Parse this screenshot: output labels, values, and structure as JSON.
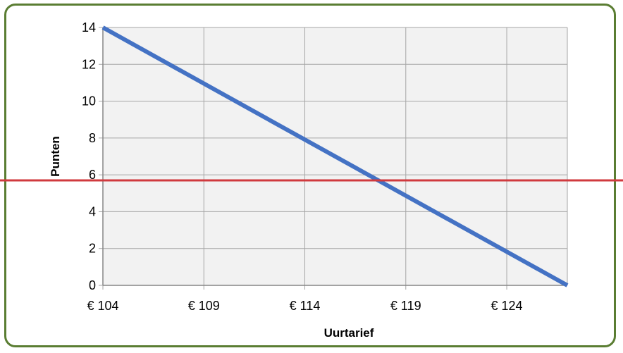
{
  "chart_data": {
    "type": "line",
    "title": "",
    "xlabel": "Uurtarief",
    "ylabel": "Punten",
    "x_tick_values": [
      104,
      109,
      114,
      119,
      124
    ],
    "x_tick_labels": [
      "€ 104",
      "€ 109",
      "€ 114",
      "€ 119",
      "€ 124"
    ],
    "y_tick_values": [
      0,
      2,
      4,
      6,
      8,
      10,
      12,
      14
    ],
    "y_tick_labels": [
      "0",
      "2",
      "4",
      "6",
      "8",
      "10",
      "12",
      "14"
    ],
    "xlim": [
      104,
      127
    ],
    "ylim": [
      0,
      14
    ],
    "grid": true,
    "legend": "none",
    "plot_background": "#f2f2f2",
    "grid_color": "#a6a6a6",
    "series": [
      {
        "color": "#4472c4",
        "x": [
          104,
          127
        ],
        "y": [
          14,
          0
        ]
      }
    ],
    "reference_line": {
      "orientation": "horizontal",
      "y": 5.7,
      "color": "#d03a3e",
      "spans": "full-width"
    }
  }
}
